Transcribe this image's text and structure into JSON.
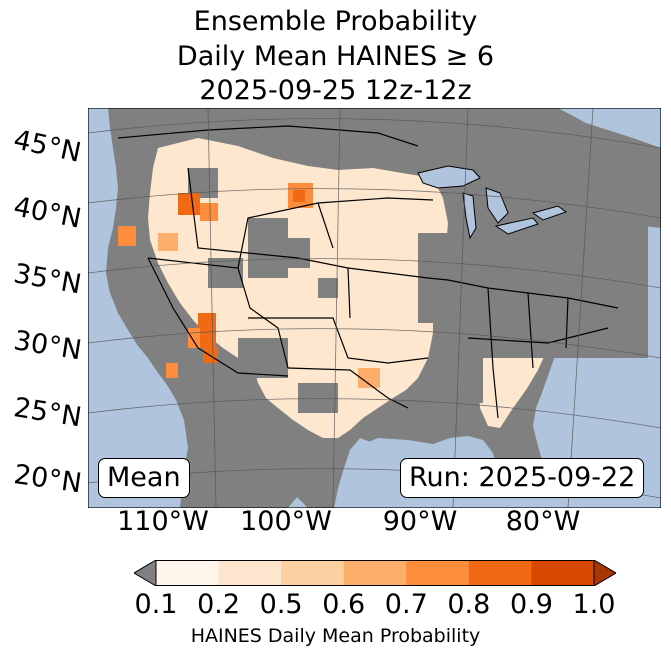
{
  "title": {
    "line1": "Ensemble Probability",
    "line2": "Daily Mean HAINES ≥ 6",
    "line3": "2025-09-25 12z-12z"
  },
  "map": {
    "lat_labels": [
      "45°N",
      "40°N",
      "35°N",
      "30°N",
      "25°N",
      "20°N"
    ],
    "lon_labels": [
      "110°W",
      "100°W",
      "90°W",
      "80°W"
    ],
    "stat_box": "Mean",
    "run_box": "Run: 2025-09-22",
    "colors": {
      "ocean": "#b0c4de",
      "no_data": "#808080",
      "land_low": "#fdf2e6",
      "borders": "#000000",
      "graticule": "#555555"
    }
  },
  "colorbar": {
    "ticks": [
      "0.1",
      "0.2",
      "0.5",
      "0.6",
      "0.7",
      "0.8",
      "0.9",
      "1.0"
    ],
    "colors": [
      "#fff5eb",
      "#fee6ce",
      "#fdd0a2",
      "#fdae6b",
      "#fd8d3c",
      "#f16913",
      "#d94801"
    ],
    "under_color": "#808080",
    "over_color": "#a63603",
    "label": "HAINES Daily Mean Probability"
  }
}
